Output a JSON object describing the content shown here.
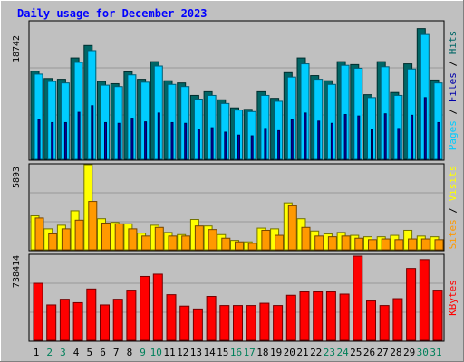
{
  "chart_data": [
    {
      "type": "bar",
      "title": "Daily usage for December 2023",
      "categories": [
        "1",
        "2",
        "3",
        "4",
        "5",
        "6",
        "7",
        "8",
        "9",
        "10",
        "11",
        "12",
        "13",
        "14",
        "15",
        "16",
        "17",
        "18",
        "19",
        "20",
        "21",
        "22",
        "23",
        "24",
        "25",
        "26",
        "27",
        "28",
        "29",
        "30",
        "31"
      ],
      "weekend_days": [
        "2",
        "3",
        "9",
        "10",
        "16",
        "17",
        "23",
        "24",
        "30",
        "31"
      ],
      "y_tick_label": "18742",
      "ylim": [
        0,
        18742
      ],
      "series": [
        {
          "name": "Hits",
          "color": "#006666",
          "values": [
            12000,
            11000,
            10900,
            13800,
            15500,
            10600,
            10300,
            11900,
            10900,
            13300,
            10700,
            10400,
            8700,
            9200,
            8100,
            7000,
            6800,
            9200,
            8300,
            11800,
            13800,
            11400,
            10700,
            13300,
            12900,
            8800,
            13300,
            9100,
            13000,
            17800,
            10800
          ]
        },
        {
          "name": "Files",
          "color": "#00ccff",
          "values": [
            11600,
            10600,
            10400,
            13200,
            14800,
            10100,
            9900,
            11500,
            10500,
            12700,
            10200,
            9900,
            8200,
            8700,
            7600,
            6700,
            6500,
            8700,
            7900,
            11200,
            13000,
            10900,
            10200,
            12800,
            12400,
            8400,
            12600,
            8700,
            12300,
            17000,
            10400
          ]
        },
        {
          "name": "Pages",
          "color": "#0000aa",
          "values": [
            5400,
            5000,
            5000,
            6400,
            7300,
            5000,
            4900,
            5600,
            5100,
            6300,
            5000,
            4900,
            4000,
            4300,
            3700,
            3300,
            3200,
            4200,
            3900,
            5400,
            6300,
            5200,
            4900,
            6100,
            5900,
            4100,
            6200,
            4200,
            6000,
            8400,
            5000
          ]
        }
      ]
    },
    {
      "type": "bar",
      "y_tick_label": "5893",
      "ylim": [
        0,
        5893
      ],
      "series": [
        {
          "name": "Visits",
          "color": "#ffff00",
          "values": [
            2350,
            1450,
            1700,
            2700,
            5893,
            2150,
            1900,
            1800,
            1150,
            1700,
            1200,
            1050,
            2100,
            1650,
            1050,
            650,
            550,
            1500,
            1450,
            3250,
            2150,
            1300,
            1100,
            1200,
            1000,
            900,
            900,
            1000,
            1350,
            950,
            900
          ]
        },
        {
          "name": "Sites",
          "color": "#ff9900",
          "values": [
            2200,
            1100,
            1450,
            2050,
            3350,
            1850,
            1800,
            1450,
            950,
            1550,
            950,
            950,
            1650,
            1400,
            800,
            550,
            450,
            1350,
            1000,
            3050,
            1550,
            950,
            900,
            950,
            800,
            700,
            750,
            700,
            750,
            750,
            700
          ]
        }
      ]
    },
    {
      "type": "bar",
      "y_tick_label": "738414",
      "ylim": [
        0,
        738414
      ],
      "series": [
        {
          "name": "KBytes",
          "color": "#ff0000",
          "values": [
            500000,
            310000,
            360000,
            330000,
            450000,
            310000,
            360000,
            440000,
            560000,
            580000,
            400000,
            300000,
            275000,
            385000,
            305000,
            305000,
            305000,
            325000,
            305000,
            395000,
            425000,
            425000,
            425000,
            405000,
            738414,
            345000,
            305000,
            365000,
            630000,
            708000,
            440000
          ]
        }
      ]
    }
  ]
}
